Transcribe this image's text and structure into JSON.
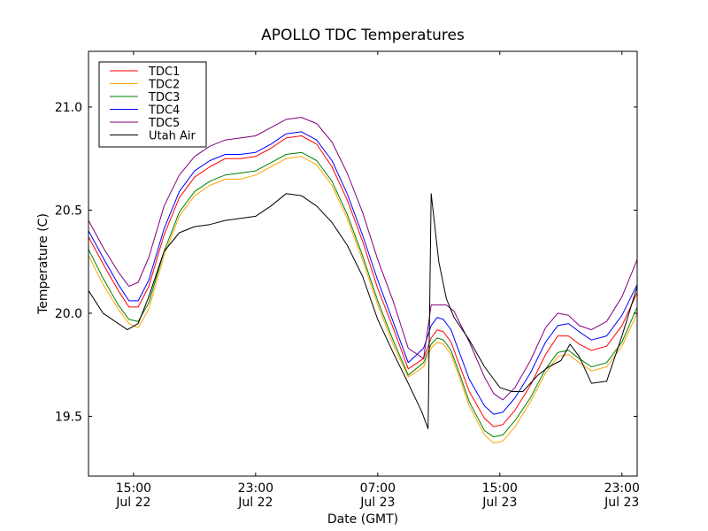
{
  "chart_data": {
    "type": "line",
    "title": "APOLLO TDC Temperatures",
    "xlabel": "Date (GMT)",
    "ylabel": "Temperature (C)",
    "x_units": "hours since 00:00 Jul 22 (GMT)",
    "xlim": [
      12.05,
      48.0
    ],
    "ylim": [
      19.21,
      21.27
    ],
    "grid": false,
    "legend_position": "top-left",
    "x_ticks": [
      {
        "value": 15,
        "label_time": "15:00",
        "label_date": "Jul 22"
      },
      {
        "value": 23,
        "label_time": "23:00",
        "label_date": "Jul 22"
      },
      {
        "value": 31,
        "label_time": "07:00",
        "label_date": "Jul 23"
      },
      {
        "value": 39,
        "label_time": "15:00",
        "label_date": "Jul 23"
      },
      {
        "value": 47,
        "label_time": "23:00",
        "label_date": "Jul 23"
      }
    ],
    "y_ticks": [
      {
        "value": 19.5,
        "label": "19.5"
      },
      {
        "value": 20.0,
        "label": "20.0"
      },
      {
        "value": 20.5,
        "label": "20.5"
      },
      {
        "value": 21.0,
        "label": "21.0"
      }
    ],
    "series": [
      {
        "name": "TDC1",
        "color": "#ff0000",
        "x": [
          12.05,
          13.0,
          14.0,
          14.7,
          15.3,
          16.0,
          17.0,
          18.0,
          19.0,
          20.0,
          21.0,
          22.0,
          23.0,
          24.0,
          25.0,
          26.0,
          27.0,
          28.0,
          29.0,
          30.0,
          31.0,
          32.0,
          33.0,
          34.0,
          34.5,
          34.9,
          35.3,
          35.8,
          36.3,
          37.0,
          38.0,
          38.6,
          39.2,
          40.0,
          41.0,
          42.0,
          42.8,
          43.5,
          44.2,
          45.0,
          46.0,
          47.0,
          48.0
        ],
        "y": [
          20.37,
          20.24,
          20.11,
          20.03,
          20.03,
          20.13,
          20.38,
          20.56,
          20.66,
          20.71,
          20.75,
          20.75,
          20.76,
          20.8,
          20.85,
          20.86,
          20.82,
          20.71,
          20.55,
          20.35,
          20.12,
          19.93,
          19.73,
          19.78,
          19.88,
          19.92,
          19.91,
          19.86,
          19.76,
          19.62,
          19.49,
          19.45,
          19.46,
          19.53,
          19.65,
          19.8,
          19.89,
          19.89,
          19.85,
          19.82,
          19.84,
          19.94,
          20.1
        ]
      },
      {
        "name": "TDC2",
        "color": "#ffa500",
        "x": [
          12.05,
          13.0,
          14.0,
          14.7,
          15.3,
          16.0,
          17.0,
          18.0,
          19.0,
          20.0,
          21.0,
          22.0,
          23.0,
          24.0,
          25.0,
          26.0,
          27.0,
          28.0,
          29.0,
          30.0,
          31.0,
          32.0,
          33.0,
          34.0,
          34.5,
          34.9,
          35.3,
          35.8,
          36.3,
          37.0,
          38.0,
          38.6,
          39.2,
          40.0,
          41.0,
          42.0,
          42.8,
          43.5,
          44.2,
          45.0,
          46.0,
          47.0,
          48.0
        ],
        "y": [
          20.28,
          20.14,
          20.02,
          19.95,
          19.93,
          20.02,
          20.28,
          20.47,
          20.57,
          20.62,
          20.65,
          20.65,
          20.67,
          20.71,
          20.75,
          20.76,
          20.72,
          20.62,
          20.46,
          20.26,
          20.04,
          19.85,
          19.69,
          19.74,
          19.83,
          19.86,
          19.85,
          19.8,
          19.7,
          19.55,
          19.41,
          19.37,
          19.38,
          19.45,
          19.57,
          19.71,
          19.79,
          19.8,
          19.76,
          19.72,
          19.74,
          19.84,
          20.0
        ]
      },
      {
        "name": "TDC3",
        "color": "#008000",
        "x": [
          12.05,
          13.0,
          14.0,
          14.7,
          15.3,
          16.0,
          17.0,
          18.0,
          19.0,
          20.0,
          21.0,
          22.0,
          23.0,
          24.0,
          25.0,
          26.0,
          27.0,
          28.0,
          29.0,
          30.0,
          31.0,
          32.0,
          33.0,
          34.0,
          34.5,
          34.9,
          35.3,
          35.8,
          36.3,
          37.0,
          38.0,
          38.6,
          39.2,
          40.0,
          41.0,
          42.0,
          42.8,
          43.5,
          44.2,
          45.0,
          46.0,
          47.0,
          48.0
        ],
        "y": [
          20.31,
          20.17,
          20.04,
          19.97,
          19.96,
          20.05,
          20.3,
          20.49,
          20.59,
          20.64,
          20.67,
          20.68,
          20.69,
          20.73,
          20.77,
          20.78,
          20.74,
          20.64,
          20.48,
          20.28,
          20.06,
          19.87,
          19.7,
          19.76,
          19.85,
          19.88,
          19.87,
          19.82,
          19.72,
          19.57,
          19.43,
          19.4,
          19.41,
          19.48,
          19.59,
          19.73,
          19.81,
          19.82,
          19.78,
          19.74,
          19.76,
          19.86,
          20.03
        ]
      },
      {
        "name": "TDC4",
        "color": "#0000ff",
        "x": [
          12.05,
          13.0,
          14.0,
          14.7,
          15.3,
          16.0,
          17.0,
          18.0,
          19.0,
          20.0,
          21.0,
          22.0,
          23.0,
          24.0,
          25.0,
          26.0,
          27.0,
          28.0,
          29.0,
          30.0,
          31.0,
          32.0,
          33.0,
          34.0,
          34.5,
          34.9,
          35.3,
          35.8,
          36.3,
          37.0,
          38.0,
          38.6,
          39.2,
          40.0,
          41.0,
          42.0,
          42.8,
          43.5,
          44.2,
          45.0,
          46.0,
          47.0,
          48.0
        ],
        "y": [
          20.4,
          20.27,
          20.14,
          20.06,
          20.06,
          20.16,
          20.41,
          20.59,
          20.69,
          20.74,
          20.77,
          20.77,
          20.78,
          20.82,
          20.87,
          20.88,
          20.84,
          20.74,
          20.58,
          20.38,
          20.16,
          19.96,
          19.76,
          19.83,
          19.94,
          19.98,
          19.97,
          19.92,
          19.82,
          19.68,
          19.55,
          19.51,
          19.52,
          19.59,
          19.71,
          19.86,
          19.94,
          19.95,
          19.91,
          19.87,
          19.89,
          19.99,
          20.14
        ]
      },
      {
        "name": "TDC5",
        "color": "#800080",
        "x": [
          12.05,
          13.0,
          14.0,
          14.7,
          15.3,
          16.0,
          17.0,
          18.0,
          19.0,
          20.0,
          21.0,
          22.0,
          23.0,
          24.0,
          25.0,
          26.0,
          27.0,
          28.0,
          29.0,
          30.0,
          31.0,
          32.0,
          33.0,
          34.0,
          34.5,
          35.5,
          36.0,
          37.0,
          38.0,
          38.6,
          39.2,
          40.0,
          41.0,
          42.0,
          42.8,
          43.5,
          44.2,
          45.0,
          46.0,
          47.0,
          48.0
        ],
        "y": [
          20.45,
          20.32,
          20.2,
          20.13,
          20.15,
          20.27,
          20.52,
          20.67,
          20.76,
          20.81,
          20.84,
          20.85,
          20.86,
          20.9,
          20.94,
          20.95,
          20.92,
          20.83,
          20.68,
          20.49,
          20.26,
          20.06,
          19.83,
          19.78,
          20.04,
          20.04,
          20.01,
          19.86,
          19.69,
          19.61,
          19.58,
          19.64,
          19.77,
          19.93,
          20.0,
          19.99,
          19.94,
          19.92,
          19.96,
          20.08,
          20.26
        ]
      },
      {
        "name": "Utah Air",
        "color": "#000000",
        "x": [
          12.05,
          13.0,
          14.0,
          14.6,
          15.3,
          16.0,
          17.0,
          18.0,
          19.0,
          20.0,
          21.0,
          22.0,
          23.0,
          24.0,
          25.0,
          26.0,
          27.0,
          28.0,
          29.0,
          30.0,
          31.0,
          32.0,
          33.0,
          33.9,
          34.3,
          34.5,
          35.0,
          35.5,
          36.0,
          37.0,
          38.0,
          39.0,
          39.8,
          40.5,
          41.5,
          42.2,
          43.0,
          43.6,
          44.2,
          45.0,
          46.0,
          47.0,
          48.0
        ],
        "y": [
          20.11,
          20.0,
          19.95,
          19.92,
          19.95,
          20.08,
          20.3,
          20.39,
          20.42,
          20.43,
          20.45,
          20.46,
          20.47,
          20.52,
          20.58,
          20.57,
          20.52,
          20.44,
          20.33,
          20.18,
          19.97,
          19.81,
          19.66,
          19.52,
          19.44,
          20.58,
          20.25,
          20.07,
          19.98,
          19.87,
          19.74,
          19.64,
          19.62,
          19.62,
          19.7,
          19.74,
          19.77,
          19.85,
          19.79,
          19.66,
          19.67,
          19.89,
          20.13
        ]
      }
    ]
  }
}
